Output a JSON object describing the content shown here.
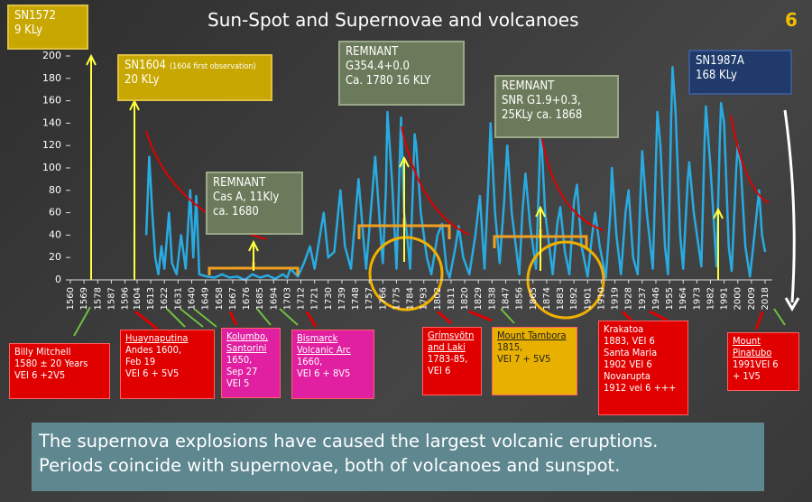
{
  "title": "Sun-Spot and Supernovae and volcanoes",
  "page_number": "6",
  "chart_data": {
    "type": "line",
    "color": "#29abe2",
    "xlim": [
      1560,
      2018
    ],
    "ylim": [
      0,
      200
    ],
    "yticks": [
      0,
      20,
      40,
      60,
      80,
      100,
      120,
      140,
      160,
      180,
      200
    ],
    "xticks": [
      1560,
      1569,
      1578,
      1587,
      1596,
      1604,
      1613,
      1622,
      1631,
      1640,
      1649,
      1658,
      1667,
      1676,
      1685,
      1694,
      1703,
      1712,
      1721,
      1730,
      1739,
      1748,
      1757,
      1766,
      1775,
      1784,
      1793,
      1802,
      1811,
      1820,
      1829,
      1838,
      1847,
      1856,
      1865,
      1874,
      1883,
      1892,
      1901,
      1910,
      1919,
      1928,
      1937,
      1946,
      1955,
      1964,
      1973,
      1982,
      1991,
      2000,
      2009,
      2018
    ],
    "x": [
      1610,
      1612,
      1614,
      1616,
      1618,
      1620,
      1622,
      1625,
      1627,
      1630,
      1633,
      1636,
      1639,
      1641,
      1643,
      1645,
      1650,
      1655,
      1660,
      1665,
      1670,
      1675,
      1680,
      1685,
      1690,
      1695,
      1700,
      1703,
      1705,
      1710,
      1714,
      1718,
      1721,
      1724,
      1727,
      1730,
      1734,
      1738,
      1741,
      1745,
      1750,
      1753,
      1755,
      1758,
      1761,
      1764,
      1766,
      1768,
      1769,
      1772,
      1775,
      1777,
      1778,
      1780,
      1782,
      1784,
      1787,
      1788,
      1791,
      1795,
      1798,
      1802,
      1805,
      1808,
      1810,
      1814,
      1816,
      1819,
      1823,
      1827,
      1830,
      1833,
      1836,
      1837,
      1840,
      1843,
      1846,
      1848,
      1851,
      1856,
      1858,
      1860,
      1863,
      1867,
      1869,
      1870,
      1873,
      1878,
      1881,
      1883,
      1886,
      1889,
      1892,
      1894,
      1897,
      1901,
      1904,
      1906,
      1909,
      1913,
      1916,
      1917,
      1920,
      1923,
      1926,
      1928,
      1931,
      1934,
      1936,
      1937,
      1940,
      1944,
      1947,
      1949,
      1952,
      1954,
      1956,
      1957,
      1959,
      1962,
      1964,
      1967,
      1968,
      1971,
      1976,
      1978,
      1979,
      1982,
      1986,
      1988,
      1989,
      1991,
      1994,
      1996,
      1999,
      2000,
      2002,
      2005,
      2008,
      2011,
      2014,
      2016,
      2018
    ],
    "values": [
      40,
      110,
      60,
      20,
      5,
      30,
      10,
      60,
      15,
      5,
      40,
      10,
      80,
      20,
      75,
      5,
      3,
      2,
      5,
      2,
      3,
      0,
      5,
      2,
      4,
      1,
      5,
      2,
      10,
      3,
      15,
      30,
      10,
      35,
      60,
      20,
      25,
      80,
      30,
      10,
      90,
      40,
      10,
      60,
      110,
      50,
      15,
      80,
      150,
      90,
      10,
      100,
      145,
      60,
      40,
      10,
      130,
      120,
      60,
      20,
      5,
      40,
      50,
      10,
      2,
      30,
      48,
      20,
      5,
      40,
      75,
      10,
      100,
      140,
      60,
      15,
      70,
      120,
      60,
      5,
      60,
      95,
      50,
      10,
      90,
      140,
      60,
      5,
      50,
      65,
      25,
      5,
      70,
      85,
      30,
      3,
      40,
      60,
      30,
      2,
      60,
      100,
      40,
      5,
      60,
      80,
      20,
      5,
      80,
      115,
      60,
      10,
      150,
      120,
      30,
      5,
      140,
      190,
      150,
      40,
      10,
      90,
      105,
      60,
      12,
      120,
      155,
      100,
      12,
      120,
      158,
      140,
      30,
      8,
      100,
      120,
      100,
      30,
      3,
      40,
      80,
      40,
      25
    ]
  },
  "supernovae": [
    {
      "lines": [
        "SN1572",
        "9 KLy"
      ]
    },
    {
      "lines": [
        "SN1604",
        "20 KLy"
      ],
      "note": "(1604 first observation)"
    },
    {
      "lines": [
        "REMNANT",
        "Cas A, 11Kly",
        "ca. 1680"
      ]
    },
    {
      "lines": [
        "REMNANT",
        "G354.4+0.0",
        "Ca. 1780  16 KLY"
      ]
    },
    {
      "lines": [
        "REMNANT",
        "SNR G1.9+0.3,",
        "25KLy ca. 1868"
      ]
    },
    {
      "lines": [
        "SN1987A",
        "168 KLy"
      ]
    }
  ],
  "volcanoes": [
    {
      "lines": [
        "Billy Mitchell",
        "1580 ± 20 Years",
        "VEI 6  +2V5"
      ]
    },
    {
      "lines": [
        "Huaynaputina",
        "Andes 1600,",
        "Feb 19",
        "VEI 6 + 5V5"
      ]
    },
    {
      "lines": [
        "Kolumbo, Santorini",
        "1650,",
        "Sep 27",
        "VEI 5"
      ]
    },
    {
      "lines": [
        "Bismarck Volcanic Arc",
        "1660,",
        "VEI 6 + 8V5"
      ]
    },
    {
      "lines": [
        "Grímsvötn and Laki",
        "1783-85,",
        "VEI 6"
      ]
    },
    {
      "lines": [
        "Mount Tambora",
        "1815,",
        "VEI 7 + 5V5"
      ]
    },
    {
      "lines": [
        "Krakatoa",
        "1883, VEI 6",
        "Santa Maria",
        "1902 VEI 6",
        "Novarupta",
        "1912 vei 6 +++"
      ]
    },
    {
      "lines": [
        "Mount Pinatubo",
        "1991VEI 6",
        "+ 1V5"
      ]
    }
  ],
  "caption": [
    "The supernova explosions have caused the largest volcanic eruptions.",
    "Periods coincide with supernovae, both of volcanoes and sunspot."
  ]
}
